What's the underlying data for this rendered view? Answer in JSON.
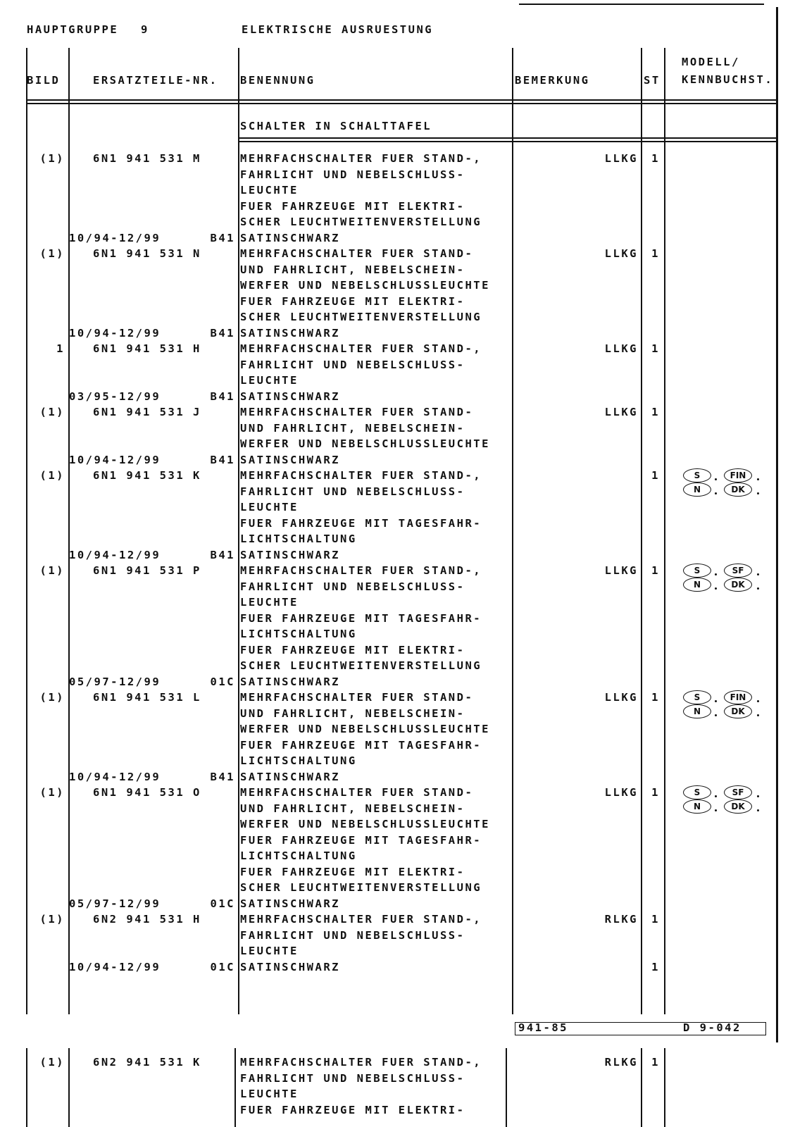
{
  "header": {
    "group_label": "HAUPTGRUPPE",
    "group_number": "9",
    "title": "ELEKTRISCHE AUSRUESTUNG"
  },
  "columns": {
    "bild": "BILD",
    "part_no": "ERSATZTEILE-NR.",
    "name": "BENENNUNG",
    "remark": "BEMERKUNG",
    "qty": "ST",
    "model": [
      "MODELL/",
      "KENNBUCHST."
    ]
  },
  "section": "SCHALTER IN SCHALTTAFEL",
  "entries": [
    {
      "bild": "(1)",
      "part_no": "6N1 941 531 M",
      "description": [
        "MEHRFACHSCHALTER FUER STAND-,",
        "FAHRLICHT UND NEBELSCHLUSS-",
        "LEUCHTE",
        "FUER FAHRZEUGE MIT ELEKTRI-",
        "SCHER LEUCHTWEITENVERSTELLUNG"
      ],
      "remark": "LLKG",
      "qty": 1,
      "validity": {
        "dates": "10/94-12/99",
        "code": "B41",
        "text": "SATINSCHWARZ"
      }
    },
    {
      "bild": "(1)",
      "part_no": "6N1 941 531 N",
      "description": [
        "MEHRFACHSCHALTER FUER STAND-",
        "UND FAHRLICHT, NEBELSCHEIN-",
        "WERFER UND NEBELSCHLUSSLEUCHTE",
        "FUER FAHRZEUGE MIT ELEKTRI-",
        "SCHER LEUCHTWEITENVERSTELLUNG"
      ],
      "remark": "LLKG",
      "qty": 1,
      "validity": {
        "dates": "10/94-12/99",
        "code": "B41",
        "text": "SATINSCHWARZ"
      }
    },
    {
      "bild": "1",
      "part_no": "6N1 941 531 H",
      "description": [
        "MEHRFACHSCHALTER FUER STAND-,",
        "FAHRLICHT UND NEBELSCHLUSS-",
        "LEUCHTE"
      ],
      "remark": "LLKG",
      "qty": 1,
      "validity": {
        "dates": "03/95-12/99",
        "code": "B41",
        "text": "SATINSCHWARZ"
      }
    },
    {
      "bild": "(1)",
      "part_no": "6N1 941 531 J",
      "description": [
        "MEHRFACHSCHALTER FUER STAND-",
        "UND FAHRLICHT, NEBELSCHEIN-",
        "WERFER UND NEBELSCHLUSSLEUCHTE"
      ],
      "remark": "LLKG",
      "qty": 1,
      "validity": {
        "dates": "10/94-12/99",
        "code": "B41",
        "text": "SATINSCHWARZ"
      }
    },
    {
      "bild": "(1)",
      "part_no": "6N1 941 531 K",
      "description": [
        "MEHRFACHSCHALTER FUER STAND-,",
        "FAHRLICHT UND NEBELSCHLUSS-",
        "LEUCHTE",
        "FUER FAHRZEUGE MIT TAGESFAHR-",
        "LICHTSCHALTUNG"
      ],
      "qty": 1,
      "models": [
        [
          "S",
          "FIN"
        ],
        [
          "N",
          "DK"
        ]
      ],
      "validity": {
        "dates": "10/94-12/99",
        "code": "B41",
        "text": "SATINSCHWARZ"
      }
    },
    {
      "bild": "(1)",
      "part_no": "6N1 941 531 P",
      "description": [
        "MEHRFACHSCHALTER FUER STAND-,",
        "FAHRLICHT UND NEBELSCHLUSS-",
        "LEUCHTE",
        "FUER FAHRZEUGE MIT TAGESFAHR-",
        "LICHTSCHALTUNG",
        "FUER FAHRZEUGE MIT ELEKTRI-",
        "SCHER LEUCHTWEITENVERSTELLUNG"
      ],
      "remark": "LLKG",
      "qty": 1,
      "models": [
        [
          "S",
          "SF"
        ],
        [
          "N",
          "DK"
        ]
      ],
      "validity": {
        "dates": "05/97-12/99",
        "code": "01C",
        "text": "SATINSCHWARZ"
      }
    },
    {
      "bild": "(1)",
      "part_no": "6N1 941 531 L",
      "description": [
        "MEHRFACHSCHALTER FUER STAND-",
        "UND FAHRLICHT, NEBELSCHEIN-",
        "WERFER UND NEBELSCHLUSSLEUCHTE",
        "FUER FAHRZEUGE MIT TAGESFAHR-",
        "LICHTSCHALTUNG"
      ],
      "remark": "LLKG",
      "qty": 1,
      "models": [
        [
          "S",
          "FIN"
        ],
        [
          "N",
          "DK"
        ]
      ],
      "validity": {
        "dates": "10/94-12/99",
        "code": "B41",
        "text": "SATINSCHWARZ"
      }
    },
    {
      "bild": "(1)",
      "part_no": "6N1 941 531 O",
      "description": [
        "MEHRFACHSCHALTER FUER STAND-",
        "UND FAHRLICHT, NEBELSCHEIN-",
        "WERFER UND NEBELSCHLUSSLEUCHTE",
        "FUER FAHRZEUGE MIT TAGESFAHR-",
        "LICHTSCHALTUNG",
        "FUER FAHRZEUGE MIT ELEKTRI-",
        "SCHER LEUCHTWEITENVERSTELLUNG"
      ],
      "remark": "LLKG",
      "qty": 1,
      "models": [
        [
          "S",
          "SF"
        ],
        [
          "N",
          "DK"
        ]
      ],
      "validity": {
        "dates": "05/97-12/99",
        "code": "01C",
        "text": "SATINSCHWARZ"
      }
    },
    {
      "bild": "(1)",
      "part_no": "6N2 941 531 H",
      "description": [
        "MEHRFACHSCHALTER FUER STAND-,",
        "FAHRLICHT UND NEBELSCHLUSS-",
        "LEUCHTE"
      ],
      "remark": "RLKG",
      "qty": 1,
      "validity": {
        "dates": "10/94-12/99",
        "code": "01C",
        "text": "SATINSCHWARZ",
        "qty": 1
      }
    }
  ],
  "footer": {
    "left": "941-85",
    "right": "D 9-042"
  },
  "continued": [
    {
      "bild": "(1)",
      "part_no": "6N2 941 531 K",
      "description": [
        "MEHRFACHSCHALTER FUER STAND-,",
        "FAHRLICHT UND NEBELSCHLUSS-",
        "LEUCHTE",
        "FUER FAHRZEUGE MIT ELEKTRI-"
      ],
      "remark": "RLKG",
      "qty": 1
    }
  ]
}
